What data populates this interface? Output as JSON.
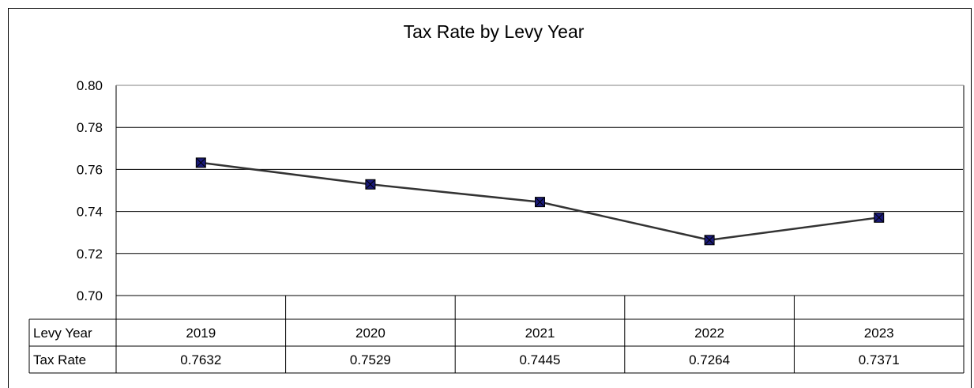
{
  "chart_data": {
    "type": "line",
    "title": "Tax Rate by Levy Year",
    "categories": [
      "2019",
      "2020",
      "2021",
      "2022",
      "2023"
    ],
    "series": [
      {
        "name": "Tax Rate",
        "values": [
          0.7632,
          0.7529,
          0.7445,
          0.7264,
          0.7371
        ],
        "value_labels": [
          "0.7632",
          "0.7529",
          "0.7445",
          "0.7264",
          "0.7371"
        ]
      }
    ],
    "ylim": [
      0.7,
      0.8
    ],
    "yticks": [
      "0.70",
      "0.72",
      "0.74",
      "0.76",
      "0.78",
      "0.80"
    ],
    "grid": true,
    "data_table": {
      "row_headers": [
        "Levy Year",
        "Tax Rate"
      ]
    },
    "colors": {
      "line": "#333333",
      "marker_fill": "#1a1a7a",
      "marker_stroke": "#000000",
      "grid": "#000000"
    }
  }
}
